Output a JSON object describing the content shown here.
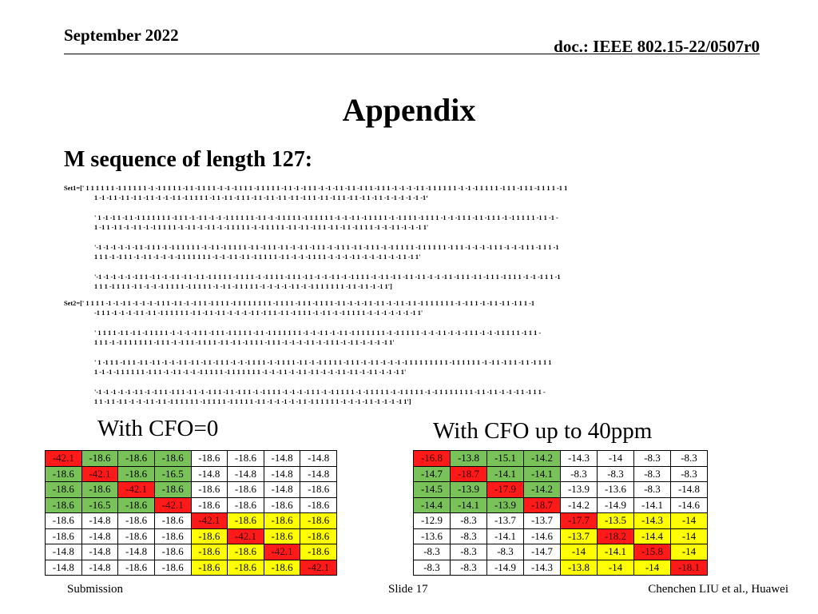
{
  "header": {
    "date": "September 2022",
    "doc": "doc.: IEEE 802.15-22/0507r0"
  },
  "title": "Appendix",
  "subtitle": "M sequence of length 127:",
  "set1": [
    "Set1=[' 1 1 1 1 1 1 -1 1 1 1 1 1 -1 -1 1 1 1 1 -1 1 -1 1 1 1 -1 -1 -1 1 1 1 -1 1 1 1 1 -1 1 -1 -1 1 1 -1 -1 -1 1 -1 1 -1 1 1 -1 1 1 -1 -1 -1 -1 1 -1 1 1 1 1 1 -1 -1 -1 1 1 1 1 -1 1 1 -1 1 1 -1 1 1 1 -1 1",
    "1 -1 -1 1 -1 1 -1 1 -1 1 -1 -1 -1 1 -1 1 1 1 1 -1 1 -1 1 -1 1 1 -1 1 -1 1 -1 1 -1 1 -1 1 1 -1 1 -1 1 1 -1 1 -1 1 -1 1 -1 -1 -1 -1 -1 -1‘",
    "' 1 -1 -1 1 -1 1 -1 1 1 1 1 1 1 -1 1 1 -1 -1 1 -1 -1 -1 1 1 1 1 1 -1 1 -1 -1 1 1 1 1 -1 1 1 1 1 1 -1 -1 -1 1 -1 1 1 1 1 -1 -1 1 1 1 -1 1 1 1 -1 -1 -1 1 1 -1 1 -1 1 1 -1 -1 1 1 1 1 -1 1 -1 -",
    "1 -1 1 -1 1 -1 -1 1 -1 -1 1 1 1 1 -1 -1 1 -1 -1 1 -1 -1 1 1 1 1 -1 -1 1 1 1 1 -1 1 -1 1 -1 1 1 -1 1 -1 1 -1 1 1 1 -1 -1 -1 1 -1 -1 -1 1'",
    "'-1 -1 -1 -1 -1 -1 1 -1 1 1 -1 -1 1 1 1 1 1 -1 -1 1 -1 1 1 1 1 -1 1 -1 1 1 -1 1 -1 -1 1 -1 1 1 -1 -1 1 1 -1 1 -1 1 1 -1 -1 1 1 1 1 -1 1 1 1 1 1 -1 1 1 -1 -1 -1 -1 1 1 -1 -1 -1 1 1 -1 1 1 -1",
    "1 1 1 -1 -1 1 1 -1 -1 1 -1 -1 -1 -1 1 1 1 1 1 1 -1 -1 -1 1 -1 1 -1 1 1 1 1 -1 1 -1 -1 -1 1 1 1 -1 -1 -1 -1 1 -1 -1 -1 1 -1 -1 1 -1 1'",
    "'-1 -1 -1 -1 -1 -1 1 1 -1 1 -1 -1 1 -1 1 -1 1 -1 1 1 1 1 -1 1 1 1 -1 -1 1 1 1 -1 1 1 -1 1 -1 -1 -1 1 -1 -1 1 1 1 -1 -1 1 -1 1 -1 1 -1 1 -1 -1 -1 1 -1 1 1 -1 1 -1 1 1 -1 1 1 1 -1 -1 -1 1 1 -1",
    "1 1 1 -1 1 1 1 -1 1 -1 -1 -1 1 1 1 1 -1 1 1 1 1 -1 -1 1 -1 1 1 1 1 -1 -1 -1 -1 -1 1 -1 -1 1 1 1 1 1 1 -1 1 -1 1 -1 -1 1']"
  ],
  "set2": [
    "Set2=[' 1 1 1 1 -1 -1 -1 1 -1 -1 -1 -1 1 1 -1 1 -1 -1 1 1 -1 1 1 1 -1 1 1 1 1 1 1 1 -1 1 1 1 -1 1 1 -1 1 1 1 -1 1 -1 -1 -1 1 -1 1 -1 -1 1 -1 1 -1 1 1 1 1 1 1 -1 -1 1 1 -1 -1 1 -1 1 -1 1 1 -1",
    "-1 1 1 -1 -1 -1 -1 1 -1 1 -1 1 1 1 1 1 -1 1 -1 1 -1 1 -1 -1 -1 -1 1 -1 1 1 -1 1 -1 1 1 1 -1 -1 1 -1 -1 1 1 1 1 -1 -1 -1 -1 -1 -1 -1 1'",
    "' 1 1 1 1 -1 1 -1 1 -1 1 1 1 1 -1 -1 -1 -1 1 1 -1 1 1 -1 1 1 1 1 -1 1 -1 1 1 1 1 1 1 -1 -1 -1 1 -1 -1 1 -1 1 1 1 1 1 1 -1 -1 1 1 1 1 -1 -1 -1 1 -1 -1 -1 1 1 -1 -1 -1 1 1 1 1 -1 1 1 -",
    "1 1 1 -1 -1 1 1 1 1 1 1 -1 1 1 -1 -1 1 1 -1 1 1 1 -1 1 -1 1 -1 1 1 1 -1 1 1 -1 -1 -1 -1 1 -1 -1 1 1 -1 -1 1 -1 -1 -1 -1 1'",
    "' 1 -1 1 1 -1 1 1 -1 1 -1 1 -1 -1 -1 1 -1 1 -1 1 -1 1 1 -1 -1 -1 1 1 1 -1 -1 1 1 1 -1 1 -1 -1 1 1 1 1 -1 1 1 -1 -1 1 -1 -1 -1 -1 1 1 1 1 1 1 1 1 -1 1 1 1 1 1 -1 -1 1 -1 1 1 -1 1 -1 1 1 1",
    "1 -1 -1 -1 1 1 1 1 1 -1 1 1 -1 -1 1 -1 -1 -1 1 1 1 1 -1 1 1 1 1 1 1 -1 -1 -1 1 -1 -1 1 -1 1 -1 -1 -1 1 -1 1 -1 -1 1 -1 -1 -1 1'",
    "'-1 -1 -1 -1 -1 -1 1 -1 -1 1 1 -1 1 1 -1 1 -1 -1 1 1 -1 1 -1 1 1 -1 -1 1 1 1 -1 -1 -1 -1 1 1 -1 -1 1 1 1 1 -1 -1 1 1 1 1 -1 -1 1 1 1 1 -1 -1 1 1 1 1 1 1 1 -1 1 -1 1 -1 -1 -1 1 -1 1 1 -",
    "1 1 -1 1 -1 1 -1 -1 -1 1 -1 1 -1 1 1 1 1 1 -1 1 1 1 1 -1 1 1 1 1 -1 1 -1 -1 -1 -1 -1 1 -1 1 1 1 1 1 -1 -1 -1 -1 1 -1 -1 -1 -1 1']"
  ],
  "caption_left": "With CFO=0",
  "caption_right": "With CFO up to 40ppm",
  "table_left": [
    [
      [
        "-42.1",
        "r"
      ],
      [
        "-18.6",
        "g"
      ],
      [
        "-18.6",
        "g"
      ],
      [
        "-18.6",
        "g"
      ],
      [
        "-18.6",
        "w"
      ],
      [
        "-18.6",
        "w"
      ],
      [
        "-14.8",
        "w"
      ],
      [
        "-14.8",
        "w"
      ]
    ],
    [
      [
        "-18.6",
        "g"
      ],
      [
        "-42.1",
        "r"
      ],
      [
        "-18.6",
        "g"
      ],
      [
        "-16.5",
        "g"
      ],
      [
        "-14.8",
        "w"
      ],
      [
        "-14.8",
        "w"
      ],
      [
        "-14.8",
        "w"
      ],
      [
        "-14.8",
        "w"
      ]
    ],
    [
      [
        "-18.6",
        "g"
      ],
      [
        "-18.6",
        "g"
      ],
      [
        "-42.1",
        "r"
      ],
      [
        "-18.6",
        "g"
      ],
      [
        "-18.6",
        "w"
      ],
      [
        "-18.6",
        "w"
      ],
      [
        "-14.8",
        "w"
      ],
      [
        "-18.6",
        "w"
      ]
    ],
    [
      [
        "-18.6",
        "g"
      ],
      [
        "-16.5",
        "g"
      ],
      [
        "-18.6",
        "g"
      ],
      [
        "-42.1",
        "r"
      ],
      [
        "-18.6",
        "w"
      ],
      [
        "-18.6",
        "w"
      ],
      [
        "-18.6",
        "w"
      ],
      [
        "-18.6",
        "w"
      ]
    ],
    [
      [
        "-18.6",
        "w"
      ],
      [
        "-14.8",
        "w"
      ],
      [
        "-18.6",
        "w"
      ],
      [
        "-18.6",
        "w"
      ],
      [
        "-42.1",
        "r"
      ],
      [
        "-18.6",
        "y"
      ],
      [
        "-18.6",
        "y"
      ],
      [
        "-18.6",
        "y"
      ]
    ],
    [
      [
        "-18.6",
        "w"
      ],
      [
        "-14.8",
        "w"
      ],
      [
        "-18.6",
        "w"
      ],
      [
        "-18.6",
        "w"
      ],
      [
        "-18.6",
        "y"
      ],
      [
        "-42.1",
        "r"
      ],
      [
        "-18.6",
        "y"
      ],
      [
        "-18.6",
        "y"
      ]
    ],
    [
      [
        "-14.8",
        "w"
      ],
      [
        "-14.8",
        "w"
      ],
      [
        "-14.8",
        "w"
      ],
      [
        "-18.6",
        "w"
      ],
      [
        "-18.6",
        "y"
      ],
      [
        "-18.6",
        "y"
      ],
      [
        "-42.1",
        "r"
      ],
      [
        "-18.6",
        "y"
      ]
    ],
    [
      [
        "-14.8",
        "w"
      ],
      [
        "-14.8",
        "w"
      ],
      [
        "-18.6",
        "w"
      ],
      [
        "-18.6",
        "w"
      ],
      [
        "-18.6",
        "y"
      ],
      [
        "-18.6",
        "y"
      ],
      [
        "-18.6",
        "y"
      ],
      [
        "-42.1",
        "r"
      ]
    ]
  ],
  "table_right": [
    [
      [
        "-16.8",
        "r"
      ],
      [
        "-13.8",
        "g"
      ],
      [
        "-15.1",
        "g"
      ],
      [
        "-14.2",
        "g"
      ],
      [
        "-14.3",
        "w"
      ],
      [
        "-14",
        "w"
      ],
      [
        "-8.3",
        "w"
      ],
      [
        "-8.3",
        "w"
      ]
    ],
    [
      [
        "-14.7",
        "g"
      ],
      [
        "-18.7",
        "r"
      ],
      [
        "-14.1",
        "g"
      ],
      [
        "-14.1",
        "g"
      ],
      [
        "-8.3",
        "w"
      ],
      [
        "-8.3",
        "w"
      ],
      [
        "-8.3",
        "w"
      ],
      [
        "-8.3",
        "w"
      ]
    ],
    [
      [
        "-14.5",
        "g"
      ],
      [
        "-13.9",
        "g"
      ],
      [
        "-17.9",
        "r"
      ],
      [
        "-14.2",
        "g"
      ],
      [
        "-13.9",
        "w"
      ],
      [
        "-13.6",
        "w"
      ],
      [
        "-8.3",
        "w"
      ],
      [
        "-14.8",
        "w"
      ]
    ],
    [
      [
        "-14.4",
        "g"
      ],
      [
        "-14.1",
        "g"
      ],
      [
        "-13.9",
        "g"
      ],
      [
        "-18.7",
        "r"
      ],
      [
        "-14.2",
        "w"
      ],
      [
        "-14.9",
        "w"
      ],
      [
        "-14.1",
        "w"
      ],
      [
        "-14.6",
        "w"
      ]
    ],
    [
      [
        "-12.9",
        "w"
      ],
      [
        "-8.3",
        "w"
      ],
      [
        "-13.7",
        "w"
      ],
      [
        "-13.7",
        "w"
      ],
      [
        "-17.7",
        "r"
      ],
      [
        "-13.5",
        "y"
      ],
      [
        "-14.3",
        "y"
      ],
      [
        "-14",
        "y"
      ]
    ],
    [
      [
        "-13.6",
        "w"
      ],
      [
        "-8.3",
        "w"
      ],
      [
        "-14.1",
        "w"
      ],
      [
        "-14.6",
        "w"
      ],
      [
        "-13.7",
        "y"
      ],
      [
        "-18.2",
        "r"
      ],
      [
        "-14.4",
        "y"
      ],
      [
        "-14",
        "y"
      ]
    ],
    [
      [
        "-8.3",
        "w"
      ],
      [
        "-8.3",
        "w"
      ],
      [
        "-8.3",
        "w"
      ],
      [
        "-14.7",
        "w"
      ],
      [
        "-14",
        "y"
      ],
      [
        "-14.1",
        "y"
      ],
      [
        "-15.8",
        "r"
      ],
      [
        "-14",
        "y"
      ]
    ],
    [
      [
        "-8.3",
        "w"
      ],
      [
        "-8.3",
        "w"
      ],
      [
        "-14.9",
        "w"
      ],
      [
        "-14.3",
        "w"
      ],
      [
        "-13.8",
        "y"
      ],
      [
        "-14",
        "y"
      ],
      [
        "-14",
        "y"
      ],
      [
        "-18.1",
        "r"
      ]
    ]
  ],
  "colors": {
    "red": "#ff1a1a",
    "green": "#79c25a",
    "yellow": "#ffff00",
    "white": "#ffffff"
  },
  "footer": {
    "left": "Submission",
    "center": "Slide 17",
    "right": "Chenchen LIU et al., Huawei"
  }
}
